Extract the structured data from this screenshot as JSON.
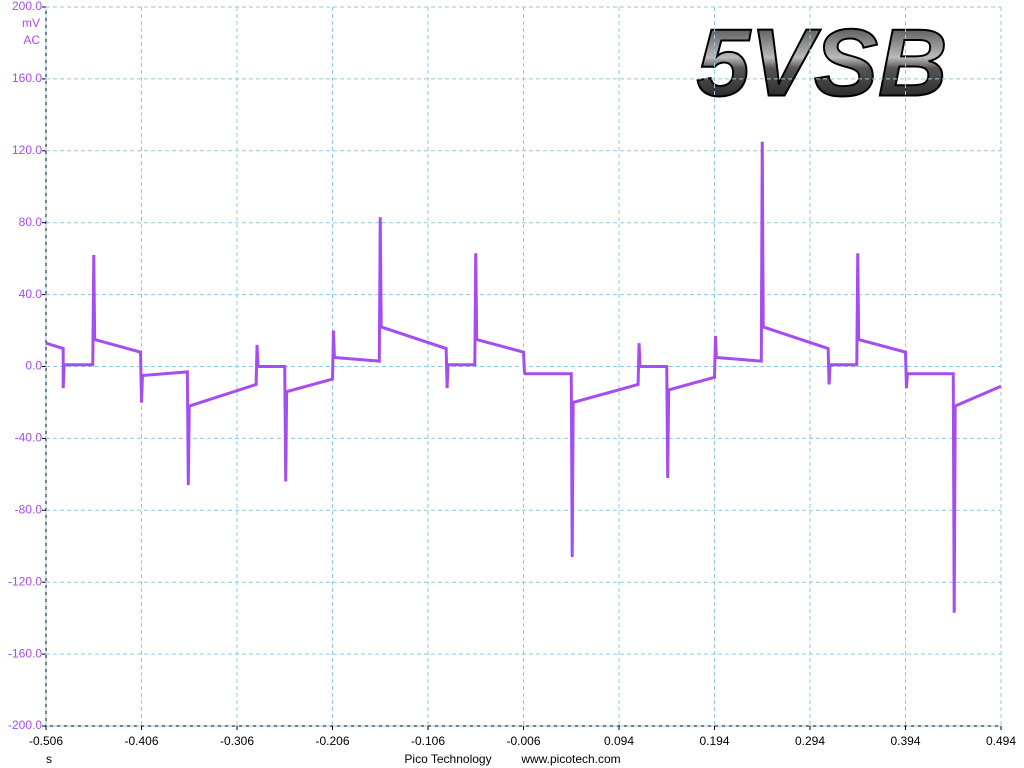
{
  "chart_data": {
    "type": "line",
    "title": "5VSB",
    "y_unit": "mV",
    "y_coupling": "AC",
    "x_unit": "s",
    "footer": [
      "Pico Technology",
      "www.picotech.com"
    ],
    "x": [
      -0.506,
      -0.488,
      -0.488,
      -0.487,
      -0.457,
      -0.456,
      -0.455,
      -0.407,
      -0.406,
      -0.405,
      -0.358,
      -0.357,
      -0.356,
      -0.286,
      -0.285,
      -0.284,
      -0.256,
      -0.255,
      -0.254,
      -0.206,
      -0.205,
      -0.204,
      -0.157,
      -0.156,
      -0.155,
      -0.087,
      -0.086,
      -0.085,
      -0.057,
      -0.056,
      -0.055,
      -0.006,
      -0.005,
      -0.004,
      0.044,
      0.045,
      0.046,
      0.114,
      0.115,
      0.116,
      0.144,
      0.145,
      0.146,
      0.194,
      0.195,
      0.196,
      0.243,
      0.244,
      0.245,
      0.313,
      0.314,
      0.315,
      0.343,
      0.344,
      0.345,
      0.394,
      0.395,
      0.396,
      0.444,
      0.445,
      0.446,
      0.494
    ],
    "series": [
      {
        "color": "#a64df2",
        "values": [
          13,
          10,
          -12,
          1,
          1,
          62,
          15,
          8,
          -20,
          -5,
          -3,
          -66,
          -22,
          -10,
          12,
          0,
          0,
          -64,
          -14,
          -7,
          20,
          5,
          3,
          83,
          22,
          10,
          -12,
          1,
          1,
          63,
          15,
          8,
          -3,
          -4,
          -4,
          -106,
          -20,
          -10,
          13,
          0,
          0,
          -62,
          -13,
          -6,
          17,
          5,
          3,
          125,
          22,
          10,
          -10,
          1,
          1,
          63,
          15,
          8,
          -12,
          -4,
          -4,
          -137,
          -22,
          -11
        ]
      }
    ],
    "xlim": [
      -0.506,
      0.494
    ],
    "xticks": [
      -0.506,
      -0.406,
      -0.306,
      -0.206,
      -0.106,
      -0.006,
      0.094,
      0.194,
      0.294,
      0.394,
      0.494
    ],
    "ylim": [
      -200,
      200
    ],
    "yticks": [
      {
        "value": 200,
        "label": "200.0"
      },
      {
        "value": 160,
        "label": "160.0"
      },
      {
        "value": 120,
        "label": "120.0"
      },
      {
        "value": 80,
        "label": "80.0"
      },
      {
        "value": 40,
        "label": "40.0"
      },
      {
        "value": 0,
        "label": "0.0"
      },
      {
        "value": -40,
        "label": "-40.0"
      },
      {
        "value": -80,
        "label": "-80.0"
      },
      {
        "value": -120,
        "label": "-120.0"
      },
      {
        "value": -160,
        "label": "-160.0"
      },
      {
        "value": -200,
        "label": "-200.0"
      }
    ],
    "grid": true
  }
}
